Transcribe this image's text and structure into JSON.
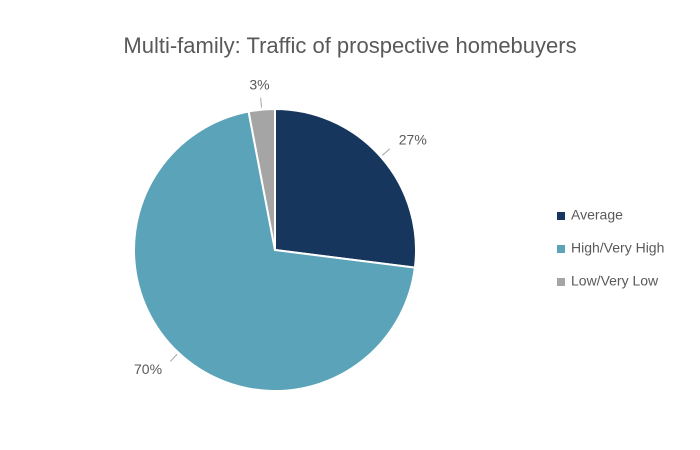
{
  "chart_data": {
    "type": "pie",
    "title": "Multi-family: Traffic of prospective homebuyers",
    "categories": [
      "Average",
      "High/Very High",
      "Low/Very Low"
    ],
    "values": [
      27,
      70,
      3
    ],
    "value_labels": [
      "27%",
      "70%",
      "3%"
    ],
    "colors": [
      "#17365d",
      "#5ba3b9",
      "#a5a5a5"
    ],
    "legend": "right"
  }
}
